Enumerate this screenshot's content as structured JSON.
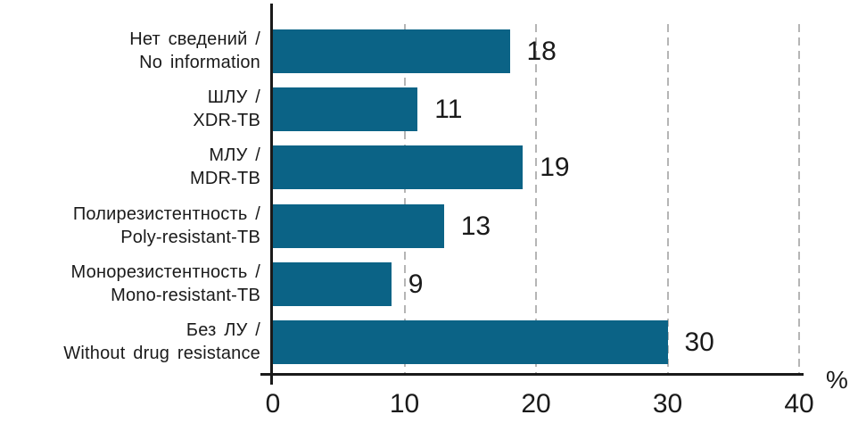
{
  "chart_data": {
    "type": "bar",
    "orientation": "horizontal",
    "title": "",
    "xlabel": "",
    "ylabel": "",
    "x_unit_label": "%",
    "xlim": [
      0,
      40
    ],
    "x_ticks": [
      0,
      10,
      20,
      30,
      40
    ],
    "grid": "vertical-dashed",
    "legend": "none",
    "categories": [
      {
        "line1": "Нет сведений /",
        "line2": "No information"
      },
      {
        "line1": "ШЛУ /",
        "line2": "XDR-TB"
      },
      {
        "line1": "МЛУ /",
        "line2": "MDR-TB"
      },
      {
        "line1": "Полирезистентность /",
        "line2": "Poly-resistant-TB"
      },
      {
        "line1": "Монорезистентность /",
        "line2": "Mono-resistant-TB"
      },
      {
        "line1": "Без ЛУ /",
        "line2": "Without drug resistance"
      }
    ],
    "values": [
      18,
      11,
      19,
      13,
      9,
      30
    ],
    "bar_color": "#0B6386",
    "axis_color": "#1A1A1A",
    "grid_color": "#B5B5B5",
    "text_color": "#1A1A1A"
  }
}
